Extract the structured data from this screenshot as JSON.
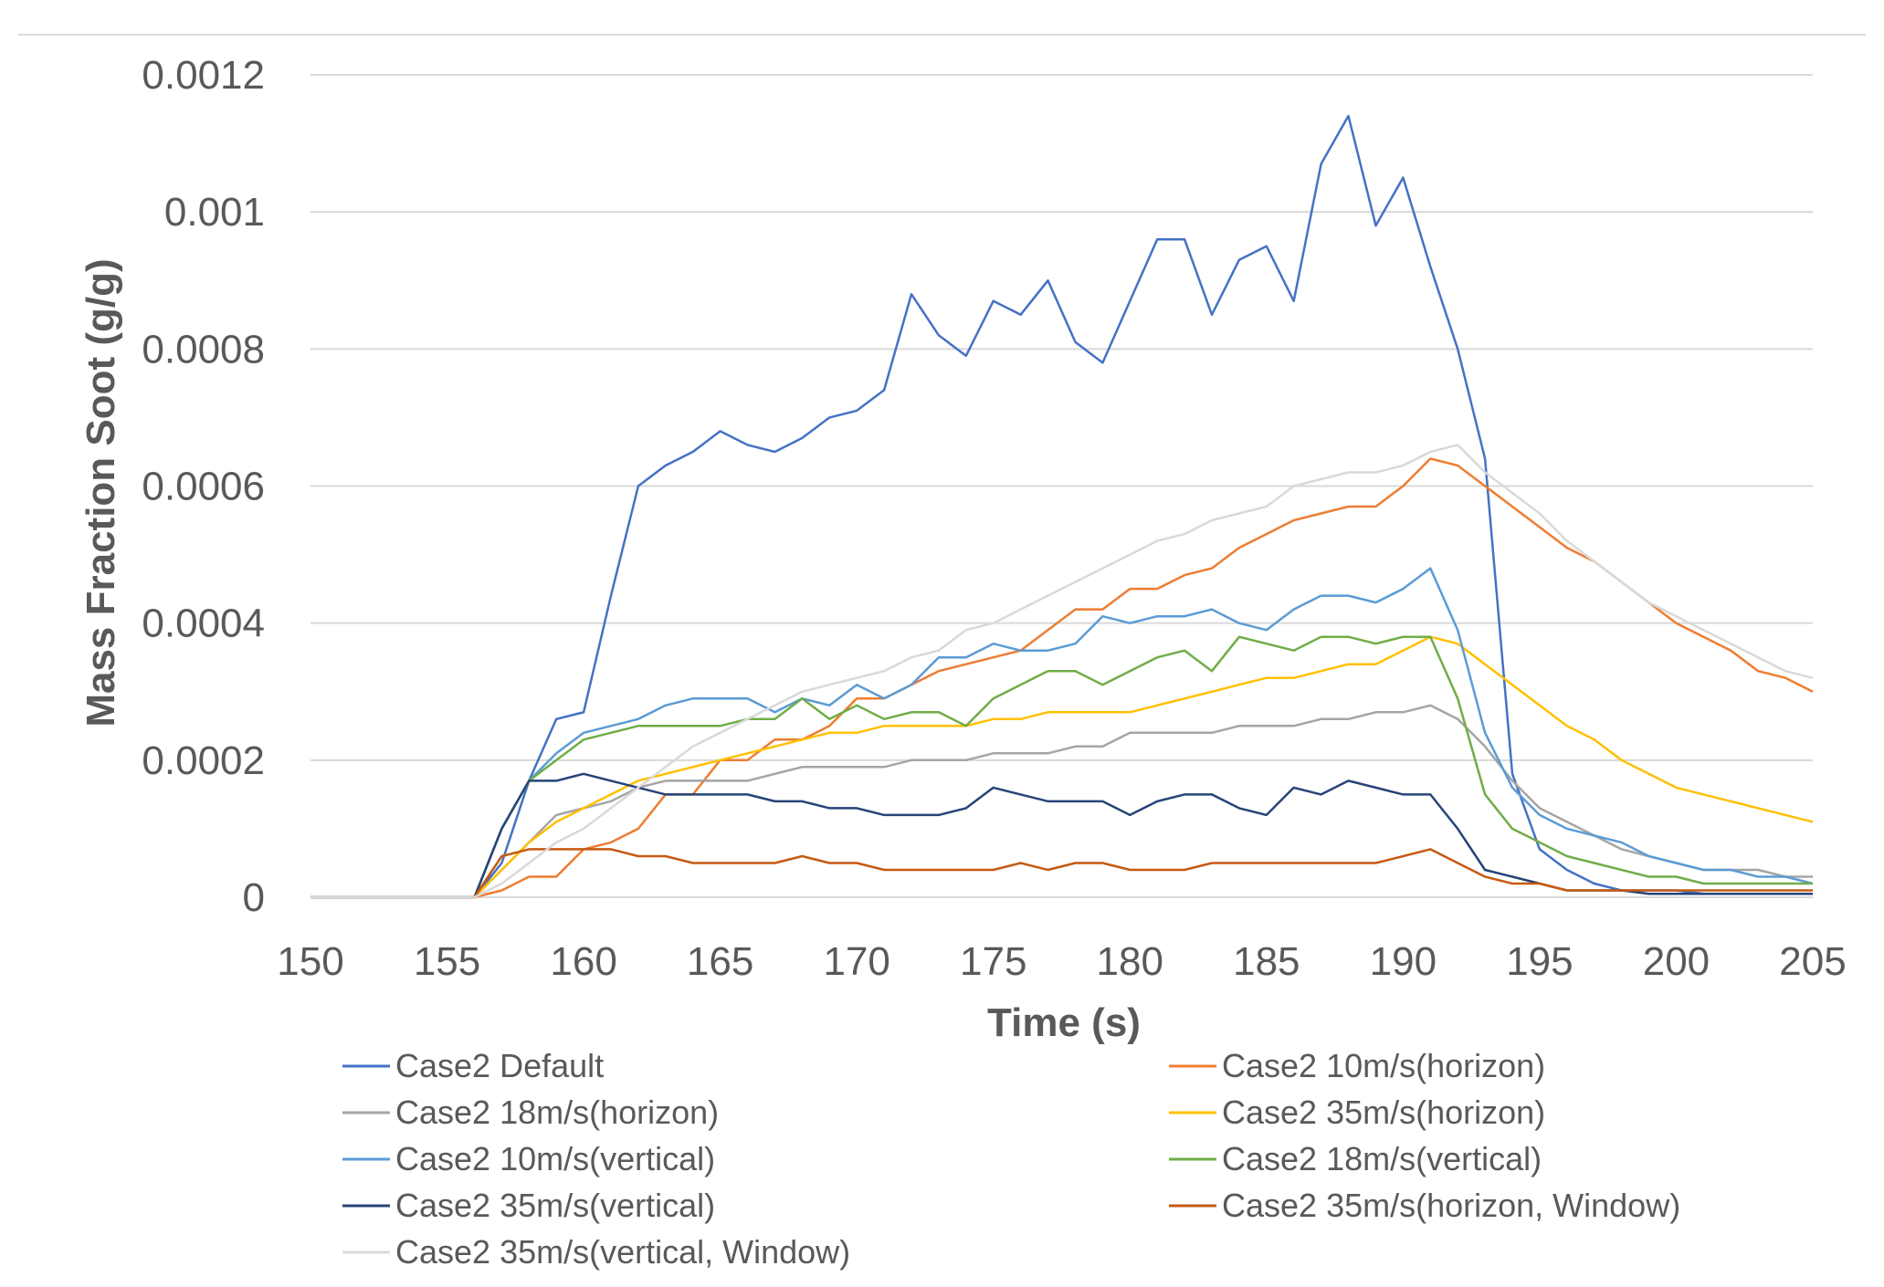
{
  "chart_data": {
    "type": "line",
    "title": "",
    "xlabel": "Time (s)",
    "ylabel": "Mass Fraction Soot (g/g)",
    "xlim": [
      150,
      205
    ],
    "ylim": [
      0,
      0.0012
    ],
    "xticks": [
      150,
      155,
      160,
      165,
      170,
      175,
      180,
      185,
      190,
      195,
      200,
      205
    ],
    "yticks": [
      0,
      0.0002,
      0.0004,
      0.0006,
      0.0008,
      0.001,
      0.0012
    ],
    "xtick_labels": [
      "150",
      "155",
      "160",
      "165",
      "170",
      "175",
      "180",
      "185",
      "190",
      "195",
      "200",
      "205"
    ],
    "ytick_labels": [
      "0",
      "0.0002",
      "0.0004",
      "0.0006",
      "0.0008",
      "0.001",
      "0.0012"
    ],
    "grid": "horizontal",
    "legend_position": "bottom",
    "series": [
      {
        "name": "Case2 Default",
        "color": "#4472C4",
        "x": [
          150,
          156,
          157,
          158,
          159,
          160,
          161,
          162,
          163,
          164,
          165,
          166,
          167,
          168,
          169,
          170,
          171,
          172,
          173,
          174,
          175,
          176,
          177,
          178,
          179,
          180,
          181,
          182,
          183,
          184,
          185,
          186,
          187,
          188,
          189,
          190,
          191,
          192,
          193,
          194,
          195,
          196,
          197,
          198,
          199,
          200,
          201,
          202,
          203,
          204,
          205
        ],
        "y": [
          0,
          0,
          5e-05,
          0.00017,
          0.00026,
          0.00027,
          0.00044,
          0.0006,
          0.00063,
          0.00065,
          0.00068,
          0.00066,
          0.00065,
          0.00067,
          0.0007,
          0.00071,
          0.00074,
          0.00088,
          0.00082,
          0.00079,
          0.00087,
          0.00085,
          0.0009,
          0.00081,
          0.00078,
          0.00087,
          0.00096,
          0.00096,
          0.00085,
          0.00093,
          0.00095,
          0.00087,
          0.00107,
          0.00114,
          0.00098,
          0.00105,
          0.00092,
          0.0008,
          0.00064,
          0.00018,
          7e-05,
          4e-05,
          2e-05,
          1e-05,
          1e-05,
          1e-05,
          5e-06,
          5e-06,
          5e-06,
          5e-06,
          5e-06
        ]
      },
      {
        "name": "Case2 10m/s(horizon)",
        "color": "#ED7D31",
        "x": [
          150,
          156,
          157,
          158,
          159,
          160,
          161,
          162,
          163,
          164,
          165,
          166,
          167,
          168,
          169,
          170,
          171,
          172,
          173,
          174,
          175,
          176,
          177,
          178,
          179,
          180,
          181,
          182,
          183,
          184,
          185,
          186,
          187,
          188,
          189,
          190,
          191,
          192,
          193,
          194,
          195,
          196,
          197,
          198,
          199,
          200,
          201,
          202,
          203,
          204,
          205
        ],
        "y": [
          0,
          0,
          1e-05,
          3e-05,
          3e-05,
          7e-05,
          8e-05,
          0.0001,
          0.00015,
          0.00015,
          0.0002,
          0.0002,
          0.00023,
          0.00023,
          0.00025,
          0.00029,
          0.00029,
          0.00031,
          0.00033,
          0.00034,
          0.00035,
          0.00036,
          0.00039,
          0.00042,
          0.00042,
          0.00045,
          0.00045,
          0.00047,
          0.00048,
          0.00051,
          0.00053,
          0.00055,
          0.00056,
          0.00057,
          0.00057,
          0.0006,
          0.00064,
          0.00063,
          0.0006,
          0.00057,
          0.00054,
          0.00051,
          0.00049,
          0.00046,
          0.00043,
          0.0004,
          0.00038,
          0.00036,
          0.00033,
          0.00032,
          0.0003
        ]
      },
      {
        "name": "Case2 18m/s(horizon)",
        "color": "#A5A5A5",
        "x": [
          150,
          156,
          157,
          158,
          159,
          160,
          161,
          162,
          163,
          164,
          165,
          166,
          167,
          168,
          169,
          170,
          171,
          172,
          173,
          174,
          175,
          176,
          177,
          178,
          179,
          180,
          181,
          182,
          183,
          184,
          185,
          186,
          187,
          188,
          189,
          190,
          191,
          192,
          193,
          194,
          195,
          196,
          197,
          198,
          199,
          200,
          201,
          202,
          203,
          204,
          205
        ],
        "y": [
          0,
          0,
          4e-05,
          8e-05,
          0.00012,
          0.00013,
          0.00014,
          0.00016,
          0.00017,
          0.00017,
          0.00017,
          0.00017,
          0.00018,
          0.00019,
          0.00019,
          0.00019,
          0.00019,
          0.0002,
          0.0002,
          0.0002,
          0.00021,
          0.00021,
          0.00021,
          0.00022,
          0.00022,
          0.00024,
          0.00024,
          0.00024,
          0.00024,
          0.00025,
          0.00025,
          0.00025,
          0.00026,
          0.00026,
          0.00027,
          0.00027,
          0.00028,
          0.00026,
          0.00022,
          0.00017,
          0.00013,
          0.00011,
          9e-05,
          7e-05,
          6e-05,
          5e-05,
          4e-05,
          4e-05,
          4e-05,
          3e-05,
          3e-05
        ]
      },
      {
        "name": "Case2 35m/s(horizon)",
        "color": "#FFC000",
        "x": [
          150,
          156,
          157,
          158,
          159,
          160,
          161,
          162,
          163,
          164,
          165,
          166,
          167,
          168,
          169,
          170,
          171,
          172,
          173,
          174,
          175,
          176,
          177,
          178,
          179,
          180,
          181,
          182,
          183,
          184,
          185,
          186,
          187,
          188,
          189,
          190,
          191,
          192,
          193,
          194,
          195,
          196,
          197,
          198,
          199,
          200,
          201,
          202,
          203,
          204,
          205
        ],
        "y": [
          0,
          0,
          4e-05,
          8e-05,
          0.00011,
          0.00013,
          0.00015,
          0.00017,
          0.00018,
          0.00019,
          0.0002,
          0.00021,
          0.00022,
          0.00023,
          0.00024,
          0.00024,
          0.00025,
          0.00025,
          0.00025,
          0.00025,
          0.00026,
          0.00026,
          0.00027,
          0.00027,
          0.00027,
          0.00027,
          0.00028,
          0.00029,
          0.0003,
          0.00031,
          0.00032,
          0.00032,
          0.00033,
          0.00034,
          0.00034,
          0.00036,
          0.00038,
          0.00037,
          0.00034,
          0.00031,
          0.00028,
          0.00025,
          0.00023,
          0.0002,
          0.00018,
          0.00016,
          0.00015,
          0.00014,
          0.00013,
          0.00012,
          0.00011
        ]
      },
      {
        "name": "Case2 10m/s(vertical)",
        "color": "#5B9BD5",
        "x": [
          150,
          156,
          157,
          158,
          159,
          160,
          161,
          162,
          163,
          164,
          165,
          166,
          167,
          168,
          169,
          170,
          171,
          172,
          173,
          174,
          175,
          176,
          177,
          178,
          179,
          180,
          181,
          182,
          183,
          184,
          185,
          186,
          187,
          188,
          189,
          190,
          191,
          192,
          193,
          194,
          195,
          196,
          197,
          198,
          199,
          200,
          201,
          202,
          203,
          204,
          205
        ],
        "y": [
          0,
          0,
          0.0001,
          0.00017,
          0.00021,
          0.00024,
          0.00025,
          0.00026,
          0.00028,
          0.00029,
          0.00029,
          0.00029,
          0.00027,
          0.00029,
          0.00028,
          0.00031,
          0.00029,
          0.00031,
          0.00035,
          0.00035,
          0.00037,
          0.00036,
          0.00036,
          0.00037,
          0.00041,
          0.0004,
          0.00041,
          0.00041,
          0.00042,
          0.0004,
          0.00039,
          0.00042,
          0.00044,
          0.00044,
          0.00043,
          0.00045,
          0.00048,
          0.00039,
          0.00024,
          0.00016,
          0.00012,
          0.0001,
          9e-05,
          8e-05,
          6e-05,
          5e-05,
          4e-05,
          4e-05,
          3e-05,
          3e-05,
          2e-05
        ]
      },
      {
        "name": "Case2 18m/s(vertical)",
        "color": "#70AD47",
        "x": [
          150,
          156,
          157,
          158,
          159,
          160,
          161,
          162,
          163,
          164,
          165,
          166,
          167,
          168,
          169,
          170,
          171,
          172,
          173,
          174,
          175,
          176,
          177,
          178,
          179,
          180,
          181,
          182,
          183,
          184,
          185,
          186,
          187,
          188,
          189,
          190,
          191,
          192,
          193,
          194,
          195,
          196,
          197,
          198,
          199,
          200,
          201,
          202,
          203,
          204,
          205
        ],
        "y": [
          0,
          0,
          0.0001,
          0.00017,
          0.0002,
          0.00023,
          0.00024,
          0.00025,
          0.00025,
          0.00025,
          0.00025,
          0.00026,
          0.00026,
          0.00029,
          0.00026,
          0.00028,
          0.00026,
          0.00027,
          0.00027,
          0.00025,
          0.00029,
          0.00031,
          0.00033,
          0.00033,
          0.00031,
          0.00033,
          0.00035,
          0.00036,
          0.00033,
          0.00038,
          0.00037,
          0.00036,
          0.00038,
          0.00038,
          0.00037,
          0.00038,
          0.00038,
          0.00029,
          0.00015,
          0.0001,
          8e-05,
          6e-05,
          5e-05,
          4e-05,
          3e-05,
          3e-05,
          2e-05,
          2e-05,
          2e-05,
          2e-05,
          2e-05
        ]
      },
      {
        "name": "Case2 35m/s(vertical)",
        "color": "#264478",
        "x": [
          150,
          156,
          157,
          158,
          159,
          160,
          161,
          162,
          163,
          164,
          165,
          166,
          167,
          168,
          169,
          170,
          171,
          172,
          173,
          174,
          175,
          176,
          177,
          178,
          179,
          180,
          181,
          182,
          183,
          184,
          185,
          186,
          187,
          188,
          189,
          190,
          191,
          192,
          193,
          194,
          195,
          196,
          197,
          198,
          199,
          200,
          201,
          202,
          203,
          204,
          205
        ],
        "y": [
          0,
          0,
          0.0001,
          0.00017,
          0.00017,
          0.00018,
          0.00017,
          0.00016,
          0.00015,
          0.00015,
          0.00015,
          0.00015,
          0.00014,
          0.00014,
          0.00013,
          0.00013,
          0.00012,
          0.00012,
          0.00012,
          0.00013,
          0.00016,
          0.00015,
          0.00014,
          0.00014,
          0.00014,
          0.00012,
          0.00014,
          0.00015,
          0.00015,
          0.00013,
          0.00012,
          0.00016,
          0.00015,
          0.00017,
          0.00016,
          0.00015,
          0.00015,
          0.0001,
          4e-05,
          3e-05,
          2e-05,
          1e-05,
          1e-05,
          1e-05,
          5e-06,
          5e-06,
          5e-06,
          5e-06,
          5e-06,
          5e-06,
          5e-06
        ]
      },
      {
        "name": "Case2 35m/s(horizon, Window)",
        "color": "#C55A11",
        "x": [
          150,
          156,
          157,
          158,
          159,
          160,
          161,
          162,
          163,
          164,
          165,
          166,
          167,
          168,
          169,
          170,
          171,
          172,
          173,
          174,
          175,
          176,
          177,
          178,
          179,
          180,
          181,
          182,
          183,
          184,
          185,
          186,
          187,
          188,
          189,
          190,
          191,
          192,
          193,
          194,
          195,
          196,
          197,
          198,
          199,
          200,
          201,
          202,
          203,
          204,
          205
        ],
        "y": [
          0,
          0,
          6e-05,
          7e-05,
          7e-05,
          7e-05,
          7e-05,
          6e-05,
          6e-05,
          5e-05,
          5e-05,
          5e-05,
          5e-05,
          6e-05,
          5e-05,
          5e-05,
          4e-05,
          4e-05,
          4e-05,
          4e-05,
          4e-05,
          5e-05,
          4e-05,
          5e-05,
          5e-05,
          4e-05,
          4e-05,
          4e-05,
          5e-05,
          5e-05,
          5e-05,
          5e-05,
          5e-05,
          5e-05,
          5e-05,
          6e-05,
          7e-05,
          5e-05,
          3e-05,
          2e-05,
          2e-05,
          1e-05,
          1e-05,
          1e-05,
          1e-05,
          1e-05,
          1e-05,
          1e-05,
          1e-05,
          1e-05,
          1e-05
        ]
      },
      {
        "name": "Case2 35m/s(vertical, Window)",
        "color": "#D9D9D9",
        "x": [
          150,
          156,
          157,
          158,
          159,
          160,
          161,
          162,
          163,
          164,
          165,
          166,
          167,
          168,
          169,
          170,
          171,
          172,
          173,
          174,
          175,
          176,
          177,
          178,
          179,
          180,
          181,
          182,
          183,
          184,
          185,
          186,
          187,
          188,
          189,
          190,
          191,
          192,
          193,
          194,
          195,
          196,
          197,
          198,
          199,
          200,
          201,
          202,
          203,
          204,
          205
        ],
        "y": [
          0,
          0,
          2e-05,
          5e-05,
          8e-05,
          0.0001,
          0.00013,
          0.00016,
          0.00019,
          0.00022,
          0.00024,
          0.00026,
          0.00028,
          0.0003,
          0.00031,
          0.00032,
          0.00033,
          0.00035,
          0.00036,
          0.00039,
          0.0004,
          0.00042,
          0.00044,
          0.00046,
          0.00048,
          0.0005,
          0.00052,
          0.00053,
          0.00055,
          0.00056,
          0.00057,
          0.0006,
          0.00061,
          0.00062,
          0.00062,
          0.00063,
          0.00065,
          0.00066,
          0.00062,
          0.00059,
          0.00056,
          0.00052,
          0.00049,
          0.00046,
          0.00043,
          0.00041,
          0.00039,
          0.00037,
          0.00035,
          0.00033,
          0.00032
        ]
      }
    ]
  }
}
